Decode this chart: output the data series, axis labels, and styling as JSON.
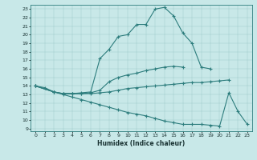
{
  "color": "#2d7d7d",
  "bg_color": "#c8e8e8",
  "xlabel": "Humidex (Indice chaleur)",
  "xlim": [
    -0.5,
    23.5
  ],
  "ylim": [
    8.7,
    23.5
  ],
  "yticks": [
    9,
    10,
    11,
    12,
    13,
    14,
    15,
    16,
    17,
    18,
    19,
    20,
    21,
    22,
    23
  ],
  "xticks": [
    0,
    1,
    2,
    3,
    4,
    5,
    6,
    7,
    8,
    9,
    10,
    11,
    12,
    13,
    14,
    15,
    16,
    17,
    18,
    19,
    20,
    21,
    22,
    23
  ],
  "line1_x": [
    0,
    1,
    2,
    3,
    4,
    5,
    6,
    7,
    8,
    9,
    10,
    11,
    12,
    13,
    14,
    15,
    16,
    17,
    18,
    19
  ],
  "line1_y": [
    14.0,
    13.8,
    13.3,
    13.1,
    13.1,
    13.2,
    13.3,
    17.2,
    18.3,
    19.8,
    20.0,
    21.2,
    21.2,
    23.0,
    23.2,
    22.2,
    20.2,
    19.0,
    16.2,
    16.0
  ],
  "line2_x": [
    0,
    2,
    3,
    4,
    5,
    6,
    7,
    8,
    9,
    10,
    11,
    12,
    13,
    14,
    15,
    16
  ],
  "line2_y": [
    14.0,
    13.3,
    13.1,
    13.1,
    13.1,
    13.2,
    13.5,
    14.5,
    15.0,
    15.3,
    15.5,
    15.8,
    16.0,
    16.2,
    16.3,
    16.2
  ],
  "line3_x": [
    0,
    2,
    3,
    4,
    5,
    6,
    7,
    8,
    9,
    10,
    11,
    12,
    13,
    14,
    15,
    16,
    17,
    18,
    19,
    20,
    21
  ],
  "line3_y": [
    14.0,
    13.3,
    13.1,
    13.1,
    13.1,
    13.1,
    13.2,
    13.3,
    13.5,
    13.7,
    13.8,
    13.9,
    14.0,
    14.1,
    14.2,
    14.3,
    14.4,
    14.4,
    14.5,
    14.6,
    14.7
  ],
  "line4_x": [
    0,
    2,
    3,
    4,
    5,
    6,
    7,
    8,
    9,
    10,
    11,
    12,
    13,
    14,
    15,
    16,
    17,
    18,
    19,
    20,
    21,
    22,
    23
  ],
  "line4_y": [
    14.0,
    13.3,
    13.0,
    12.7,
    12.4,
    12.1,
    11.8,
    11.5,
    11.2,
    10.9,
    10.7,
    10.5,
    10.2,
    9.9,
    9.7,
    9.5,
    9.5,
    9.5,
    9.4,
    9.3,
    13.2,
    11.0,
    9.5
  ]
}
